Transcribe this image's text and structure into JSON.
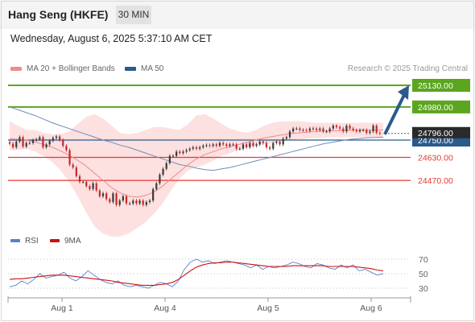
{
  "header": {
    "symbol": "Hang Seng (HKFE)",
    "timeframe": "30 MIN"
  },
  "datetime": "Wednesday, August 6, 2025 5:37:10 AM CET",
  "legend": {
    "items": [
      {
        "label": "MA 20 + Bollinger Bands",
        "color": "#f08b8b"
      },
      {
        "label": "MA 50",
        "color": "#2b5a8c"
      }
    ],
    "credit": "Research © 2025 Trading Central"
  },
  "colors": {
    "up": "#3a3a3a",
    "down": "#c62828",
    "resistance": "#5ba51f",
    "support": "#e53935",
    "pivot": "#2b5a8c",
    "arrow": "#2b5a8c",
    "bollinger_fill": "#fde0e0",
    "ma20": "#ef8a8a",
    "ma50": "#6b8fb8",
    "rsi": "#5b7fcc",
    "rsi_ma": "#cc1010"
  },
  "x_axis": {
    "labels": [
      "Aug 1",
      "Aug 4",
      "Aug 5",
      "Aug 6"
    ]
  },
  "rsi_panel": {
    "labels": {
      "rsi": "RSI",
      "ma": "9MA"
    },
    "ticks": [
      "70",
      "50",
      "30"
    ]
  },
  "chart_data": [
    {
      "type": "candlestick",
      "title": "Hang Seng (HKFE)",
      "timeframe": "30 MIN",
      "last_price": "24796.00",
      "levels": [
        {
          "value": 25130,
          "label": "25130.00",
          "kind": "resistance"
        },
        {
          "value": 24980,
          "label": "24980.00",
          "kind": "resistance"
        },
        {
          "value": 24750,
          "label": "24750.00",
          "kind": "pivot"
        },
        {
          "value": 24630,
          "label": "24630.00",
          "kind": "support"
        },
        {
          "value": 24470,
          "label": "24470.00",
          "kind": "support"
        }
      ],
      "close_series": [
        24725,
        24700,
        24740,
        24770,
        24705,
        24730,
        24730,
        24750,
        24755,
        24770,
        24700,
        24720,
        24745,
        24765,
        24775,
        24750,
        24710,
        24680,
        24580,
        24560,
        24500,
        24460,
        24460,
        24430,
        24410,
        24450,
        24400,
        24360,
        24380,
        24340,
        24320,
        24380,
        24300,
        24330,
        24360,
        24310,
        24310,
        24330,
        24310,
        24330,
        24300,
        24320,
        24330,
        24410,
        24450,
        24510,
        24550,
        24590,
        24640,
        24640,
        24670,
        24660,
        24670,
        24680,
        24690,
        24700,
        24690,
        24700,
        24710,
        24715,
        24710,
        24720,
        24710,
        24730,
        24720,
        24710,
        24720,
        24720,
        24690,
        24690,
        24720,
        24700,
        24730,
        24710,
        24720,
        24740,
        24730,
        24700,
        24690,
        24730,
        24740,
        24720,
        24760,
        24770,
        24810,
        24830,
        24830,
        24820,
        24820,
        24815,
        24830,
        24830,
        24820,
        24830,
        24810,
        24810,
        24830,
        24850,
        24840,
        24830,
        24810,
        24850,
        24830,
        24820,
        24810,
        24820,
        24820,
        24800,
        24810,
        24850,
        24800,
        24795
      ],
      "ma50": [
        24980,
        24960,
        24940,
        24920,
        24895,
        24870,
        24850,
        24830,
        24810,
        24790,
        24770,
        24750,
        24735,
        24715,
        24700,
        24680,
        24660,
        24640,
        24620,
        24600,
        24580,
        24570,
        24555,
        24545,
        24540,
        24550,
        24560,
        24575,
        24590,
        24605,
        24620,
        24635,
        24650,
        24665,
        24680,
        24695,
        24710,
        24725,
        24735,
        24745,
        24755,
        24760,
        24765,
        24768,
        24770
      ],
      "ma20": [
        24760,
        24755,
        24750,
        24735,
        24720,
        24700,
        24675,
        24645,
        24610,
        24570,
        24520,
        24470,
        24420,
        24385,
        24360,
        24355,
        24365,
        24390,
        24430,
        24480,
        24530,
        24580,
        24620,
        24650,
        24670,
        24690,
        24705,
        24720,
        24735,
        24750,
        24765,
        24775,
        24785,
        24795,
        24800,
        24805,
        24810,
        24812,
        24814,
        24816,
        24818,
        24819,
        24820,
        24820,
        24820
      ],
      "bollinger_upper": [
        24880,
        24850,
        24820,
        24820,
        24800,
        24790,
        24790,
        24810,
        24860,
        24910,
        24930,
        24900,
        24850,
        24800,
        24790,
        24800,
        24820,
        24840,
        24840,
        24830,
        24820,
        24860,
        24920,
        24930,
        24900,
        24860,
        24830,
        24810,
        24800,
        24820,
        24850,
        24870,
        24880,
        24880,
        24880,
        24875,
        24870,
        24870,
        24870,
        24870,
        24870,
        24870,
        24870,
        24870,
        24870
      ],
      "bollinger_lower": [
        24680,
        24680,
        24690,
        24670,
        24640,
        24600,
        24540,
        24460,
        24360,
        24250,
        24150,
        24100,
        24080,
        24080,
        24100,
        24140,
        24180,
        24240,
        24310,
        24400,
        24480,
        24540,
        24560,
        24580,
        24610,
        24640,
        24660,
        24680,
        24700,
        24710,
        24720,
        24730,
        24740,
        24750,
        24755,
        24760,
        24765,
        24768,
        24770,
        24770,
        24770,
        24770,
        24770,
        24770,
        24770
      ],
      "projection": {
        "from": 24790,
        "to": 25130
      }
    },
    {
      "type": "line",
      "title": "RSI",
      "series": [
        {
          "name": "RSI",
          "values": [
            32,
            34,
            40,
            36,
            42,
            50,
            44,
            46,
            48,
            52,
            44,
            40,
            46,
            54,
            48,
            42,
            38,
            36,
            40,
            34,
            32,
            34,
            32,
            30,
            34,
            38,
            36,
            32,
            40,
            56,
            66,
            70,
            66,
            68,
            64,
            66,
            68,
            66,
            64,
            62,
            58,
            62,
            56,
            60,
            58,
            60,
            62,
            66,
            64,
            60,
            58,
            64,
            62,
            58,
            56,
            62,
            58,
            62,
            54,
            56,
            52,
            48,
            50
          ]
        },
        {
          "name": "9MA",
          "values": [
            42,
            43,
            43,
            44,
            45,
            46,
            47,
            48,
            48,
            48,
            47,
            46,
            45,
            44,
            43,
            42,
            41,
            40,
            38,
            37,
            36,
            35,
            34,
            34,
            34,
            35,
            36,
            38,
            42,
            48,
            54,
            59,
            62,
            64,
            65,
            65,
            66,
            66,
            65,
            64,
            63,
            62,
            61,
            60,
            60,
            60,
            60,
            61,
            61,
            61,
            61,
            61,
            61,
            60,
            60,
            60,
            60,
            60,
            59,
            58,
            57,
            55,
            54
          ]
        }
      ],
      "yticks": [
        70,
        50,
        30
      ]
    }
  ]
}
